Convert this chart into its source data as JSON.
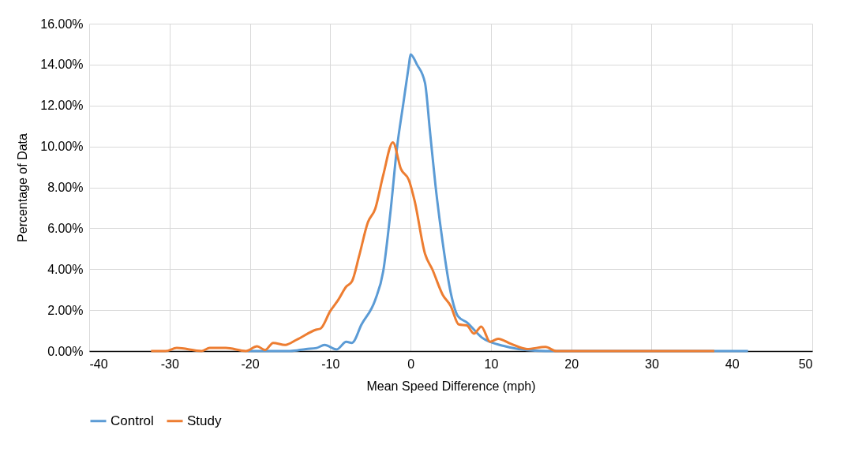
{
  "chart_data": {
    "type": "line",
    "xlabel": "Mean Speed Difference (mph)",
    "ylabel": "Percentage of Data",
    "xlim": [
      -40,
      50
    ],
    "xticks": [
      -40,
      -30,
      -20,
      -10,
      0,
      10,
      20,
      30,
      40,
      50
    ],
    "ylim": [
      0,
      0.16
    ],
    "yticks": [
      {
        "value": 0,
        "label": "0.00%"
      },
      {
        "value": 0.02,
        "label": "2.00%"
      },
      {
        "value": 0.04,
        "label": "4.00%"
      },
      {
        "value": 0.06,
        "label": "6.00%"
      },
      {
        "value": 0.08,
        "label": "8.00%"
      },
      {
        "value": 0.1,
        "label": "10.00%"
      },
      {
        "value": 0.12,
        "label": "12.00%"
      },
      {
        "value": 0.14,
        "label": "14.00%"
      },
      {
        "value": 0.16,
        "label": "16.00%"
      }
    ],
    "grid": true,
    "legend": "bottom",
    "marker": "none",
    "line_style": "solid",
    "series": [
      {
        "name": "Control",
        "color": "#5b9bd5",
        "x": [
          -20.3,
          -15,
          -13,
          -11.7,
          -10.7,
          -9.2,
          -8,
          -7.3,
          -6.1,
          -4.4,
          -3.4,
          -2.5,
          -1.7,
          -0.9,
          -0.2,
          0,
          0.8,
          1.8,
          2.4,
          3.1,
          4,
          5,
          5.9,
          7,
          8.9,
          11.6,
          15.5,
          18.1,
          30,
          42
        ],
        "values": [
          0,
          0,
          0.001,
          0.0015,
          0.003,
          0.0008,
          0.0045,
          0.004,
          0.013,
          0.025,
          0.039,
          0.068,
          0.099,
          0.121,
          0.14,
          0.145,
          0.14,
          0.131,
          0.108,
          0.081,
          0.053,
          0.0285,
          0.017,
          0.014,
          0.0065,
          0.0025,
          0.0002,
          0,
          0,
          0
        ]
      },
      {
        "name": "Study",
        "color": "#ed7d31",
        "x": [
          -32.3,
          -30.5,
          -29.1,
          -26,
          -25,
          -23,
          -20.5,
          -19.1,
          -18.1,
          -17.1,
          -15.6,
          -14.2,
          -11.7,
          -11.2,
          -10,
          -9,
          -8,
          -7.3,
          -6.4,
          -5.3,
          -4.4,
          -3.4,
          -2.2,
          -1.2,
          -0.2,
          0.5,
          1.8,
          2.7,
          4,
          5,
          6,
          7,
          7.9,
          8.8,
          9.9,
          10.9,
          12.5,
          14.5,
          16.8,
          18.1,
          30,
          37.8
        ],
        "values": [
          0,
          0,
          0.0015,
          0,
          0.0015,
          0.0015,
          0,
          0.0023,
          0.0005,
          0.004,
          0.003,
          0.0055,
          0.0105,
          0.011,
          0.0195,
          0.025,
          0.0315,
          0.034,
          0.0465,
          0.063,
          0.0695,
          0.086,
          0.102,
          0.089,
          0.0835,
          0.0735,
          0.0475,
          0.04,
          0.0275,
          0.022,
          0.013,
          0.0125,
          0.0085,
          0.012,
          0.0045,
          0.006,
          0.0035,
          0.001,
          0.002,
          0,
          0,
          0
        ]
      }
    ]
  }
}
